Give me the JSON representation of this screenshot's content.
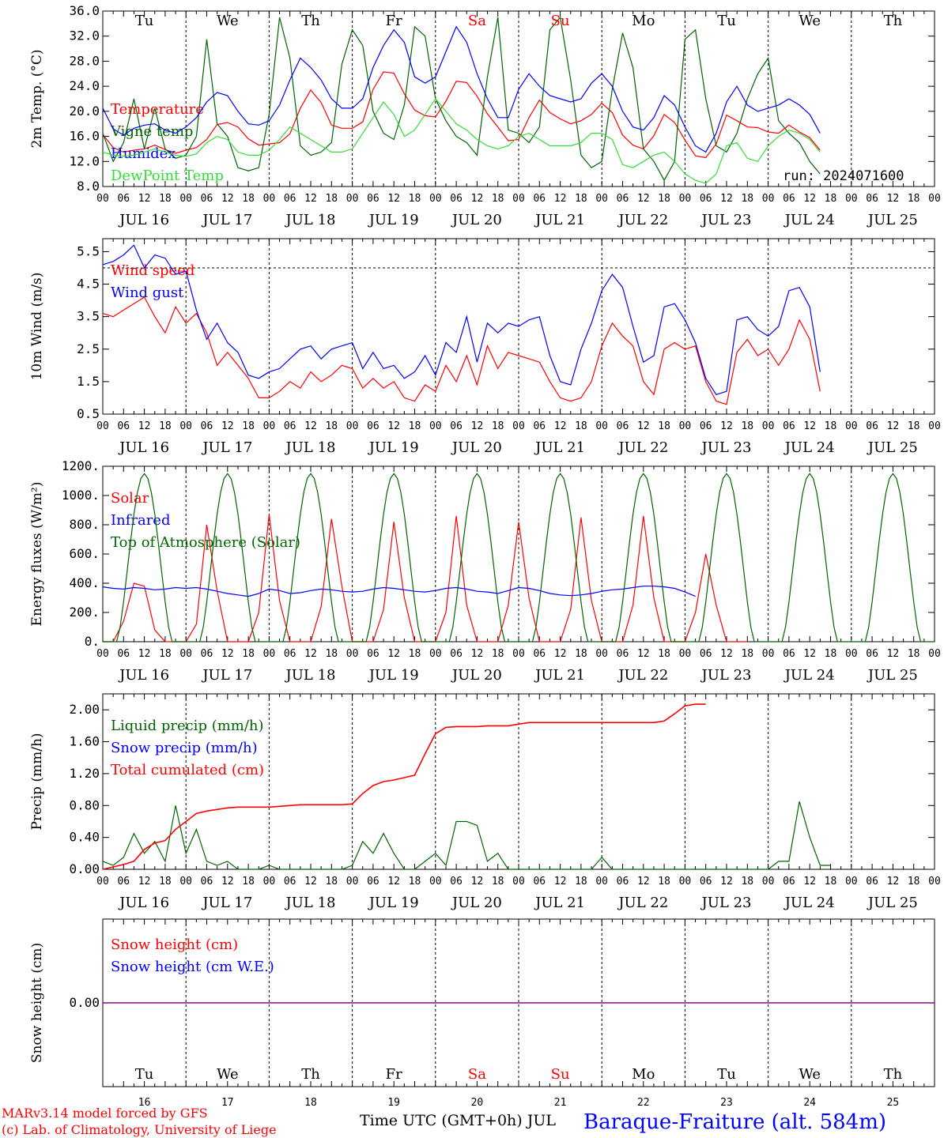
{
  "colors": {
    "red": "#ff0000",
    "blue": "#0000ff",
    "green": "#006400",
    "lightgreen": "#33dd33",
    "purple": "#800080",
    "black": "#000000"
  },
  "day_of_week": [
    "Tu",
    "We",
    "Th",
    "Fr",
    "Sa",
    "Su",
    "Mo",
    "Tu",
    "We",
    "Th"
  ],
  "weekend_days": [
    "Sa",
    "Su"
  ],
  "date_labels": [
    "JUL 16",
    "JUL 17",
    "JUL 18",
    "JUL 19",
    "JUL 20",
    "JUL 21",
    "JUL 22",
    "JUL 23",
    "JUL 24",
    "JUL 25"
  ],
  "hour_ticks": [
    "00",
    "06",
    "12",
    "18"
  ],
  "bottom_day_numbers": [
    "16",
    "17",
    "18",
    "19",
    "20",
    "21",
    "22",
    "23",
    "24",
    "25"
  ],
  "run_label": "run: 2024071600",
  "footer": {
    "model": "MARv3.14 model forced by GFS",
    "credit": "(c) Lab. of Climatology, University of Liege",
    "xaxis": "Time UTC (GMT+0h) JUL",
    "station": "Baraque-Fraiture (alt. 584m)"
  },
  "chart_data": [
    {
      "type": "line",
      "ylabel": "2m Temp. (°C)",
      "ylim": [
        8,
        36
      ],
      "yticks": [
        "8.0",
        "12.0",
        "16.0",
        "20.0",
        "24.0",
        "28.0",
        "32.0",
        "36.0"
      ],
      "x_unit": "hours since JUL 16 00 UTC",
      "x_step": 3,
      "series": [
        {
          "name": "Temperature",
          "color": "#ff0000",
          "values": [
            16.3,
            14.2,
            13.5,
            13.8,
            14.0,
            14.6,
            13.9,
            13.3,
            13.8,
            14.2,
            15.5,
            17.9,
            18.2,
            17.5,
            15.6,
            14.6,
            14.8,
            15.0,
            16.4,
            20.5,
            23.4,
            21.4,
            17.8,
            17.3,
            17.3,
            18.3,
            23.5,
            26.3,
            26.1,
            22.8,
            20.2,
            19.3,
            19.1,
            21.6,
            24.8,
            24.6,
            22.4,
            19.6,
            17.5,
            15.3,
            15.5,
            19.0,
            21.8,
            19.8,
            18.8,
            18.0,
            18.5,
            19.5,
            21.3,
            19.8,
            16.2,
            14.6,
            14.0,
            16.1,
            19.5,
            18.2,
            15.4,
            12.9,
            12.6,
            14.8,
            19.4,
            18.5,
            17.5,
            17.4,
            16.7,
            16.5,
            17.8,
            16.7,
            15.8,
            13.8
          ]
        },
        {
          "name": "Vigne temp",
          "color": "#006400",
          "values": [
            16.5,
            12.0,
            15.0,
            22.0,
            14.0,
            20.5,
            14.0,
            12.5,
            13.0,
            16.0,
            31.5,
            18.0,
            16.0,
            11.0,
            10.5,
            11.0,
            19.5,
            35.0,
            28.5,
            14.5,
            13.0,
            13.5,
            15.0,
            27.5,
            33.0,
            30.5,
            20.0,
            16.5,
            15.5,
            21.0,
            33.5,
            32.0,
            22.0,
            18.5,
            16.0,
            15.0,
            13.0,
            25.5,
            35.0,
            17.0,
            16.5,
            15.0,
            17.5,
            33.0,
            35.0,
            25.0,
            13.0,
            11.0,
            12.0,
            23.5,
            32.5,
            27.0,
            14.0,
            12.0,
            9.0,
            12.0,
            31.5,
            33.0,
            22.0,
            14.5,
            13.5,
            16.5,
            22.0,
            26.0,
            28.5,
            18.5,
            16.5,
            15.0,
            12.0,
            10.0
          ]
        },
        {
          "name": "Humidex",
          "color": "#0000ff",
          "values": [
            20.5,
            17.2,
            16.2,
            17.3,
            17.8,
            18.0,
            17.0,
            16.5,
            17.5,
            19.0,
            21.5,
            23.0,
            22.5,
            20.0,
            18.0,
            17.8,
            18.5,
            21.0,
            25.0,
            28.5,
            27.0,
            25.0,
            22.0,
            20.5,
            20.5,
            22.0,
            27.0,
            30.5,
            33.0,
            31.0,
            25.5,
            24.5,
            25.5,
            29.5,
            33.5,
            31.0,
            26.0,
            22.0,
            19.0,
            19.0,
            23.5,
            26.0,
            24.0,
            22.5,
            22.0,
            21.5,
            22.0,
            24.5,
            26.0,
            24.0,
            20.0,
            17.5,
            17.0,
            19.0,
            22.5,
            21.0,
            17.5,
            14.5,
            13.5,
            16.5,
            21.5,
            24.0,
            21.0,
            20.0,
            20.5,
            21.0,
            22.0,
            21.0,
            19.5,
            16.5
          ]
        },
        {
          "name": "DewPoint Temp",
          "color": "#33dd33",
          "values": [
            13.5,
            13.0,
            12.8,
            13.0,
            13.5,
            14.0,
            13.5,
            13.0,
            12.8,
            13.2,
            15.0,
            16.0,
            15.5,
            13.5,
            13.0,
            13.0,
            13.8,
            15.5,
            17.5,
            16.5,
            15.5,
            14.5,
            13.5,
            13.5,
            14.0,
            16.5,
            19.0,
            21.5,
            19.5,
            16.0,
            17.0,
            19.5,
            22.0,
            20.0,
            18.0,
            17.0,
            15.5,
            14.5,
            14.0,
            14.5,
            16.0,
            16.5,
            15.5,
            14.5,
            14.5,
            14.5,
            15.0,
            16.5,
            16.5,
            15.5,
            11.5,
            11.0,
            12.0,
            13.0,
            13.5,
            12.0,
            10.0,
            9.0,
            8.5,
            10.0,
            14.5,
            15.0,
            12.5,
            12.0,
            14.5,
            16.0,
            17.0,
            16.5,
            15.5,
            13.5
          ]
        }
      ]
    },
    {
      "type": "line",
      "ylabel": "10m Wind (m/s)",
      "ylim": [
        0.5,
        5.9
      ],
      "yticks": [
        "0.5",
        "1.5",
        "2.5",
        "3.5",
        "4.5",
        "5.5"
      ],
      "reference_line": 5.0,
      "x_unit": "hours since JUL 16 00 UTC",
      "x_step": 3,
      "series": [
        {
          "name": "Wind speed",
          "color": "#ff0000",
          "values": [
            3.6,
            3.5,
            3.7,
            3.9,
            4.1,
            3.5,
            3.0,
            3.8,
            3.3,
            3.6,
            3.0,
            2.0,
            2.4,
            2.0,
            1.6,
            1.0,
            1.0,
            1.2,
            1.5,
            1.3,
            1.8,
            1.5,
            1.7,
            2.0,
            1.9,
            1.3,
            1.6,
            1.3,
            1.5,
            1.0,
            0.9,
            1.4,
            1.2,
            2.0,
            1.5,
            2.3,
            1.4,
            2.6,
            1.9,
            2.4,
            2.3,
            2.2,
            2.1,
            1.5,
            1.0,
            0.9,
            1.0,
            1.5,
            2.6,
            3.3,
            2.9,
            2.6,
            1.5,
            1.1,
            2.5,
            2.7,
            2.5,
            2.6,
            1.5,
            0.9,
            0.8,
            2.4,
            2.8,
            2.3,
            2.5,
            2.0,
            2.5,
            3.4,
            2.8,
            1.2
          ]
        },
        {
          "name": "Wind gust",
          "color": "#0000ff",
          "values": [
            5.1,
            5.2,
            5.4,
            5.7,
            5.0,
            5.4,
            5.3,
            4.8,
            4.9,
            3.7,
            2.8,
            3.3,
            2.7,
            2.4,
            1.7,
            1.6,
            1.8,
            1.9,
            2.2,
            2.5,
            2.6,
            2.2,
            2.5,
            2.6,
            2.7,
            1.9,
            2.4,
            1.9,
            2.0,
            1.6,
            1.8,
            2.3,
            1.7,
            2.7,
            2.4,
            3.5,
            2.1,
            3.3,
            3.0,
            3.3,
            3.2,
            3.4,
            3.5,
            2.3,
            1.5,
            1.4,
            2.5,
            3.3,
            4.3,
            4.8,
            4.4,
            3.2,
            2.1,
            2.3,
            3.8,
            3.9,
            3.4,
            2.7,
            1.6,
            1.1,
            1.2,
            3.4,
            3.5,
            3.1,
            2.9,
            3.2,
            4.3,
            4.4,
            3.8,
            1.8
          ]
        }
      ]
    },
    {
      "type": "line",
      "ylabel": "Energy fluxes (W/m²)",
      "ylim": [
        0,
        1200
      ],
      "yticks": [
        "0.",
        "200.",
        "400.",
        "600.",
        "800.",
        "1000.",
        "1200."
      ],
      "x_unit": "hours since JUL 16 00 UTC",
      "x_step": 3,
      "series": [
        {
          "name": "Solar",
          "color": "#ff0000",
          "values": [
            0,
            0,
            140,
            400,
            380,
            80,
            0,
            0,
            0,
            120,
            800,
            350,
            0,
            0,
            0,
            200,
            870,
            280,
            0,
            0,
            0,
            240,
            840,
            380,
            0,
            0,
            0,
            220,
            820,
            300,
            0,
            0,
            0,
            200,
            860,
            250,
            0,
            0,
            0,
            250,
            820,
            300,
            0,
            0,
            0,
            220,
            850,
            280,
            0,
            0,
            0,
            250,
            860,
            300,
            0,
            0,
            0,
            200,
            600,
            250,
            0,
            0,
            0
          ]
        },
        {
          "name": "Infrared",
          "color": "#0000ff",
          "values": [
            375,
            365,
            360,
            370,
            365,
            355,
            360,
            370,
            365,
            370,
            360,
            345,
            330,
            320,
            310,
            330,
            360,
            350,
            330,
            335,
            350,
            360,
            355,
            345,
            340,
            345,
            360,
            370,
            365,
            355,
            345,
            340,
            350,
            365,
            370,
            360,
            345,
            340,
            330,
            350,
            370,
            365,
            350,
            330,
            320,
            315,
            320,
            330,
            345,
            355,
            360,
            370,
            380,
            380,
            375,
            365,
            340,
            310
          ]
        },
        {
          "name": "Top of Atmosphere (Solar)",
          "color": "#006400",
          "peak_per_day": 1150
        }
      ]
    },
    {
      "type": "line",
      "ylabel": "Precip (mm/h)",
      "ylim": [
        0,
        2.2
      ],
      "yticks": [
        "0.00",
        "0.40",
        "0.80",
        "1.20",
        "1.60",
        "2.00"
      ],
      "x_unit": "hours since JUL 16 00 UTC",
      "x_step": 3,
      "series": [
        {
          "name": "Liquid precip (mm/h)",
          "color": "#006400",
          "values": [
            0.1,
            0.05,
            0.15,
            0.45,
            0.2,
            0.35,
            0.1,
            0.8,
            0.2,
            0.5,
            0.1,
            0.05,
            0.1,
            0,
            0,
            0,
            0.05,
            0,
            0,
            0,
            0,
            0,
            0,
            0,
            0.05,
            0.35,
            0.2,
            0.45,
            0.2,
            0,
            0,
            0.1,
            0.2,
            0.05,
            0.6,
            0.6,
            0.55,
            0.1,
            0.2,
            0,
            0,
            0,
            0,
            0,
            0,
            0,
            0,
            0,
            0.15,
            0,
            0,
            0,
            0,
            0,
            0,
            0,
            0,
            0,
            0,
            0,
            0,
            0,
            0,
            0,
            0,
            0.1,
            0.1,
            0.85,
            0.4,
            0.05,
            0.05
          ]
        },
        {
          "name": "Snow precip (mm/h)",
          "color": "#0000ff",
          "values": []
        },
        {
          "name": "Total cumulated (cm)",
          "color": "#ff0000",
          "values": [
            0,
            0.03,
            0.06,
            0.1,
            0.25,
            0.33,
            0.36,
            0.5,
            0.6,
            0.7,
            0.73,
            0.75,
            0.77,
            0.78,
            0.78,
            0.78,
            0.78,
            0.79,
            0.8,
            0.81,
            0.81,
            0.81,
            0.81,
            0.81,
            0.82,
            0.95,
            1.05,
            1.1,
            1.12,
            1.15,
            1.18,
            1.45,
            1.7,
            1.78,
            1.79,
            1.79,
            1.79,
            1.8,
            1.8,
            1.8,
            1.82,
            1.84,
            1.84,
            1.84,
            1.84,
            1.84,
            1.84,
            1.84,
            1.84,
            1.84,
            1.84,
            1.84,
            1.84,
            1.84,
            1.86,
            1.95,
            2.05,
            2.07,
            2.07
          ]
        }
      ]
    },
    {
      "type": "line",
      "ylabel": "Snow height (cm)",
      "yticks": [
        "0.00"
      ],
      "series": [
        {
          "name": "Snow height (cm)",
          "color": "#ff0000",
          "values": [
            0,
            0
          ]
        },
        {
          "name": "Snow height (cm W.E.)",
          "color": "#0000ff",
          "values": [
            0,
            0
          ]
        }
      ]
    }
  ]
}
